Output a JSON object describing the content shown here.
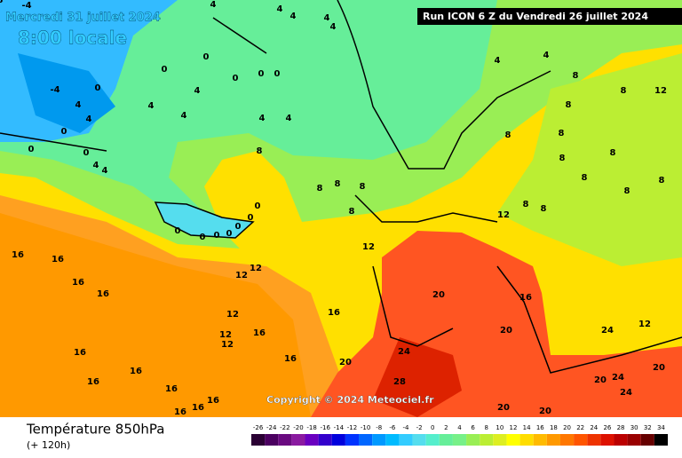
{
  "header": {
    "date": "Mercredi 31 juillet 2024",
    "time": "8:00 locale",
    "run": "Run ICON 6 Z du Vendredi 26 juillet 2024"
  },
  "copyright": "Copyright © 2024 Meteociel.fr",
  "footer": {
    "title": "Température 850hPa",
    "subtitle": "(+ 120h)"
  },
  "scale": {
    "values": [
      -26,
      -24,
      -22,
      -20,
      -18,
      -16,
      -14,
      -12,
      -10,
      -8,
      -6,
      -4,
      -2,
      0,
      2,
      4,
      6,
      8,
      10,
      12,
      14,
      16,
      18,
      20,
      22,
      24,
      26,
      28,
      30,
      32,
      34
    ],
    "colors": [
      "#2a0033",
      "#4b0060",
      "#6a0a80",
      "#8a1aa0",
      "#6a00c0",
      "#3300cc",
      "#0000dd",
      "#0033ff",
      "#0066ff",
      "#0099ff",
      "#00bbff",
      "#33ccff",
      "#55ddee",
      "#55eecc",
      "#66ee99",
      "#77f088",
      "#99ee55",
      "#bbee33",
      "#ddee22",
      "#ffff00",
      "#ffdd00",
      "#ffbb00",
      "#ff9900",
      "#ff7700",
      "#ff5500",
      "#ee3300",
      "#dd1100",
      "#bb0000",
      "#990000",
      "#660000",
      "#000000"
    ]
  },
  "contour_labels": [
    -4,
    4,
    4,
    4,
    4,
    4,
    0,
    0,
    0,
    4,
    0,
    -4,
    4,
    4,
    4,
    4,
    4,
    4,
    0,
    0,
    0,
    4,
    4,
    0,
    0,
    4,
    4,
    8,
    8,
    8,
    8,
    8,
    8,
    8,
    12,
    8,
    8,
    8,
    8,
    8,
    8,
    8,
    8,
    8,
    8,
    0,
    0,
    0,
    0,
    0,
    0,
    0,
    12,
    12,
    12,
    16,
    16,
    16,
    16,
    12,
    16,
    12,
    16,
    12,
    16,
    16,
    16,
    16,
    16,
    16,
    16,
    16,
    20,
    20,
    24,
    28,
    20,
    16,
    20,
    20,
    20,
    20,
    24,
    24,
    24,
    12,
    12,
    8
  ]
}
